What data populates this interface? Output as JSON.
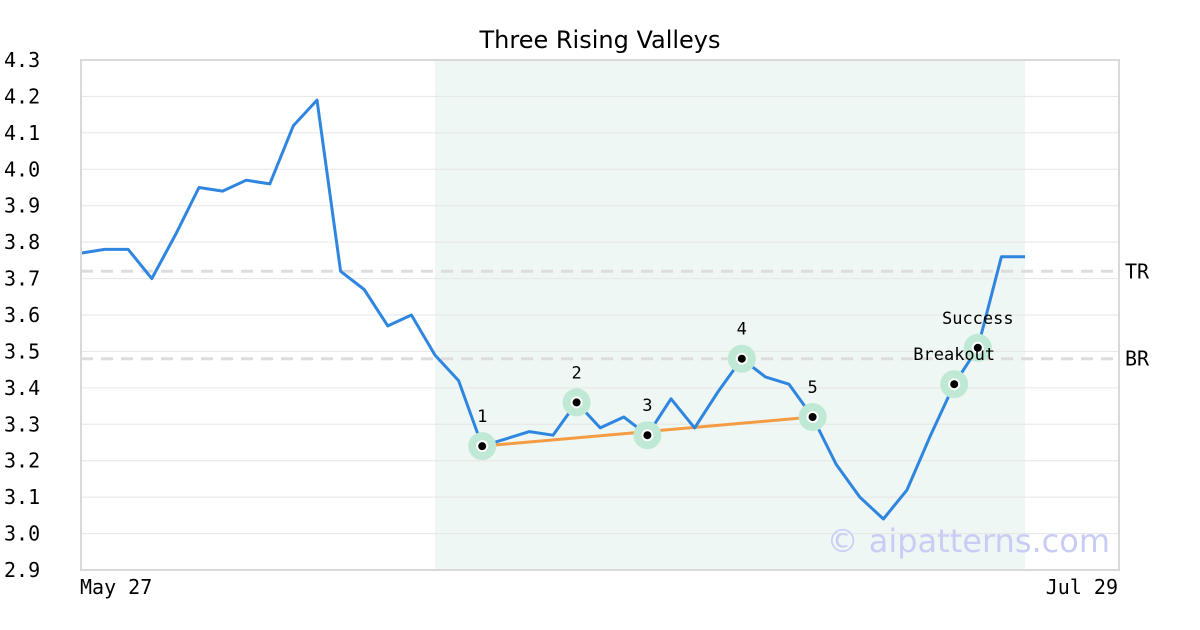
{
  "chart_data": {
    "type": "line",
    "title": "Three Rising Valleys",
    "x_start_label": "May 27",
    "x_end_label": "Jul 29",
    "ylim": [
      2.9,
      4.3
    ],
    "yticks": [
      "2.9",
      "3.0",
      "3.1",
      "3.2",
      "3.3",
      "3.4",
      "3.5",
      "3.6",
      "3.7",
      "3.8",
      "3.9",
      "4.0",
      "4.1",
      "4.2",
      "4.3"
    ],
    "grid": "horizontal",
    "series": [
      {
        "values": [
          3.77,
          3.78,
          3.78,
          3.7,
          3.82,
          3.95,
          3.94,
          3.97,
          3.96,
          4.12,
          4.19,
          3.72,
          3.67,
          3.57,
          3.6,
          3.49,
          3.42,
          3.24,
          3.26,
          3.28,
          3.27,
          3.36,
          3.29,
          3.32,
          3.27,
          3.37,
          3.29,
          3.39,
          3.48,
          3.43,
          3.41,
          3.32,
          3.19,
          3.1,
          3.04,
          3.12,
          3.27,
          3.41,
          3.51,
          3.76,
          3.76
        ]
      }
    ],
    "highlight_range": [
      15,
      40
    ],
    "reference_lines": [
      {
        "label": "TR",
        "value": 3.72
      },
      {
        "label": "BR",
        "value": 3.48
      }
    ],
    "pattern_points": [
      {
        "label": "1",
        "index": 17,
        "value": 3.24
      },
      {
        "label": "2",
        "index": 21,
        "value": 3.36
      },
      {
        "label": "3",
        "index": 24,
        "value": 3.27
      },
      {
        "label": "4",
        "index": 28,
        "value": 3.48
      },
      {
        "label": "5",
        "index": 31,
        "value": 3.32
      }
    ],
    "signal_points": [
      {
        "label": "Breakout",
        "index": 37,
        "value": 3.41
      },
      {
        "label": "Success",
        "index": 38,
        "value": 3.51
      }
    ],
    "trendline": {
      "from_index": 17,
      "from_value": 3.24,
      "to_index": 31,
      "to_value": 3.32
    },
    "colors": {
      "line": "#2f86e0",
      "trendline": "#f59b43",
      "highlight": "#eef7f3",
      "marker_halo": "#bfe9d5",
      "reference": "#dddddd",
      "grid": "#e6e6e6",
      "watermark": "#c9cdf5"
    }
  },
  "watermark": "© aipatterns.com"
}
